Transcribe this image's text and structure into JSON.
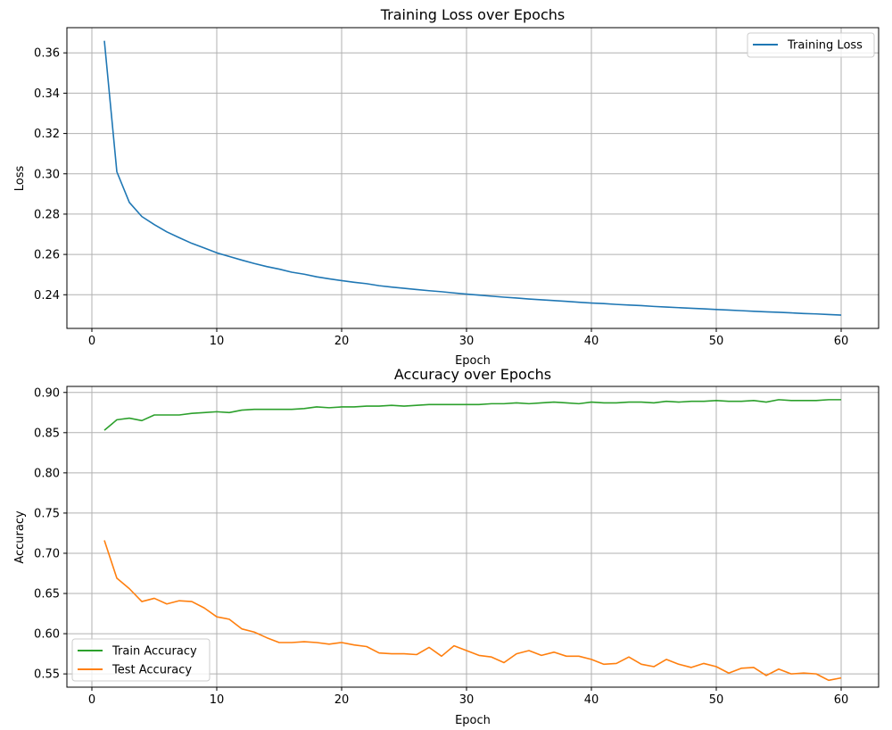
{
  "chart_data": [
    {
      "type": "line",
      "title": "Training Loss over Epochs",
      "xlabel": "Epoch",
      "ylabel": "Loss",
      "xlim": [
        -2,
        63
      ],
      "ylim": [
        0.2233,
        0.3725
      ],
      "xticks": [
        0,
        10,
        20,
        30,
        40,
        50,
        60
      ],
      "yticks": [
        0.24,
        0.26,
        0.28,
        0.3,
        0.32,
        0.34,
        0.36
      ],
      "ytick_labels": [
        "0.24",
        "0.26",
        "0.28",
        "0.30",
        "0.32",
        "0.34",
        "0.36"
      ],
      "grid": true,
      "legend": "top-right",
      "x": [
        1,
        2,
        3,
        4,
        5,
        6,
        7,
        8,
        9,
        10,
        11,
        12,
        13,
        14,
        15,
        16,
        17,
        18,
        19,
        20,
        21,
        22,
        23,
        24,
        25,
        26,
        27,
        28,
        29,
        30,
        31,
        32,
        33,
        34,
        35,
        36,
        37,
        38,
        39,
        40,
        41,
        42,
        43,
        44,
        45,
        46,
        47,
        48,
        49,
        50,
        51,
        52,
        53,
        54,
        55,
        56,
        57,
        58,
        59,
        60
      ],
      "series": [
        {
          "name": "Training Loss",
          "color": "#1f77b4",
          "values": [
            0.366,
            0.301,
            0.2858,
            0.2788,
            0.2748,
            0.2712,
            0.2683,
            0.2655,
            0.2632,
            0.2608,
            0.259,
            0.2572,
            0.2555,
            0.254,
            0.2527,
            0.2512,
            0.2502,
            0.2489,
            0.2479,
            0.247,
            0.2462,
            0.2455,
            0.2445,
            0.2438,
            0.2432,
            0.2426,
            0.242,
            0.2415,
            0.2409,
            0.2403,
            0.2398,
            0.2393,
            0.2388,
            0.2384,
            0.2379,
            0.2375,
            0.2371,
            0.2367,
            0.2363,
            0.2359,
            0.2356,
            0.2352,
            0.2349,
            0.2346,
            0.2342,
            0.2339,
            0.2336,
            0.2333,
            0.233,
            0.2327,
            0.2324,
            0.2321,
            0.2318,
            0.2315,
            0.2313,
            0.231,
            0.2307,
            0.2305,
            0.2302,
            0.2299
          ]
        }
      ]
    },
    {
      "type": "line",
      "title": "Accuracy over Epochs",
      "xlabel": "Epoch",
      "ylabel": "Accuracy",
      "xlim": [
        -2,
        63
      ],
      "ylim": [
        0.5335,
        0.9075
      ],
      "xticks": [
        0,
        10,
        20,
        30,
        40,
        50,
        60
      ],
      "yticks": [
        0.55,
        0.6,
        0.65,
        0.7,
        0.75,
        0.8,
        0.85,
        0.9
      ],
      "ytick_labels": [
        "0.55",
        "0.60",
        "0.65",
        "0.70",
        "0.75",
        "0.80",
        "0.85",
        "0.90"
      ],
      "grid": true,
      "legend": "bottom-left",
      "x": [
        1,
        2,
        3,
        4,
        5,
        6,
        7,
        8,
        9,
        10,
        11,
        12,
        13,
        14,
        15,
        16,
        17,
        18,
        19,
        20,
        21,
        22,
        23,
        24,
        25,
        26,
        27,
        28,
        29,
        30,
        31,
        32,
        33,
        34,
        35,
        36,
        37,
        38,
        39,
        40,
        41,
        42,
        43,
        44,
        45,
        46,
        47,
        48,
        49,
        50,
        51,
        52,
        53,
        54,
        55,
        56,
        57,
        58,
        59,
        60
      ],
      "series": [
        {
          "name": "Train Accuracy",
          "color": "#2ca02c",
          "values": [
            0.853,
            0.866,
            0.868,
            0.865,
            0.872,
            0.872,
            0.872,
            0.874,
            0.875,
            0.876,
            0.875,
            0.878,
            0.879,
            0.879,
            0.879,
            0.879,
            0.88,
            0.882,
            0.881,
            0.882,
            0.882,
            0.883,
            0.883,
            0.884,
            0.883,
            0.884,
            0.885,
            0.885,
            0.885,
            0.885,
            0.885,
            0.886,
            0.886,
            0.887,
            0.886,
            0.887,
            0.888,
            0.887,
            0.886,
            0.888,
            0.887,
            0.887,
            0.888,
            0.888,
            0.887,
            0.889,
            0.888,
            0.889,
            0.889,
            0.89,
            0.889,
            0.889,
            0.89,
            0.888,
            0.891,
            0.89,
            0.89,
            0.89,
            0.891,
            0.891
          ]
        },
        {
          "name": "Test Accuracy",
          "color": "#ff7f0e",
          "values": [
            0.716,
            0.669,
            0.656,
            0.64,
            0.644,
            0.637,
            0.641,
            0.64,
            0.632,
            0.621,
            0.618,
            0.606,
            0.602,
            0.595,
            0.589,
            0.589,
            0.59,
            0.589,
            0.587,
            0.589,
            0.586,
            0.584,
            0.576,
            0.575,
            0.575,
            0.574,
            0.583,
            0.572,
            0.585,
            0.579,
            0.573,
            0.571,
            0.564,
            0.575,
            0.579,
            0.573,
            0.577,
            0.572,
            0.572,
            0.568,
            0.562,
            0.563,
            0.571,
            0.562,
            0.559,
            0.568,
            0.562,
            0.558,
            0.563,
            0.559,
            0.551,
            0.557,
            0.558,
            0.548,
            0.556,
            0.55,
            0.551,
            0.55,
            0.542,
            0.545
          ]
        }
      ]
    }
  ]
}
